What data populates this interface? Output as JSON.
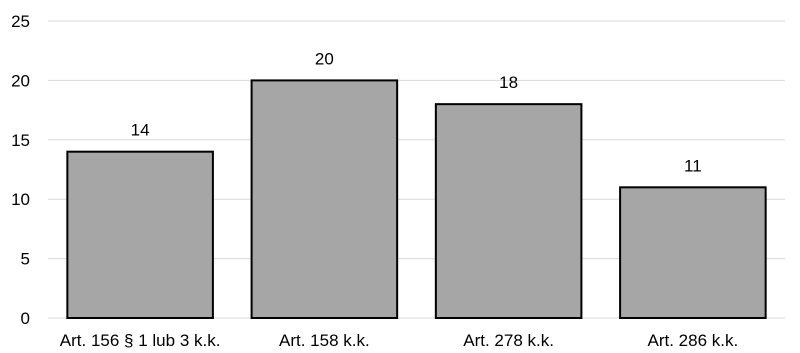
{
  "chart_data": {
    "type": "bar",
    "categories": [
      "Art. 156 § 1 lub 3 k.k.",
      "Art. 158 k.k.",
      "Art. 278 k.k.",
      "Art. 286 k.k."
    ],
    "values": [
      14,
      20,
      18,
      11
    ],
    "title": "",
    "xlabel": "",
    "ylabel": "",
    "ylim": [
      0,
      25
    ],
    "yticks": [
      0,
      5,
      10,
      15,
      20,
      25
    ],
    "grid": true,
    "legend": "none",
    "bar_color": "#a6a6a6",
    "bar_outline": "#000000",
    "data_labels": true
  }
}
